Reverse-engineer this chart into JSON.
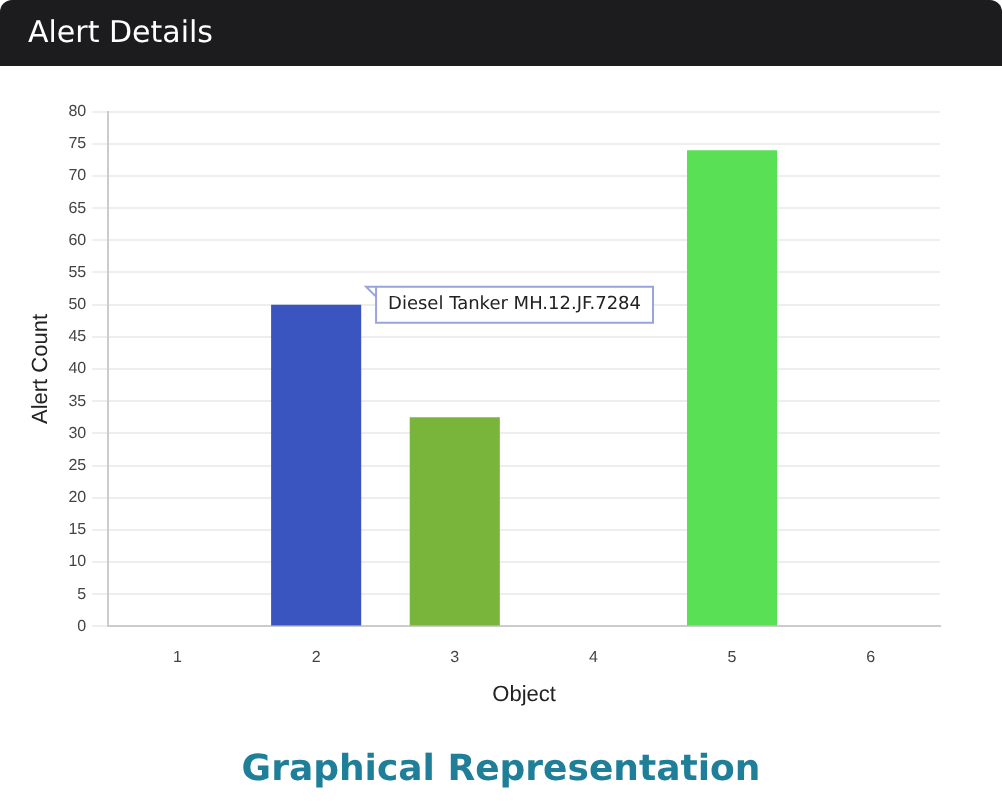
{
  "chart_data": {
    "type": "bar",
    "title": "Alert Details",
    "subtitle": "Graphical Representation",
    "xlabel": "Object",
    "ylabel": "Alert Count",
    "categories": [
      "1",
      "2",
      "3",
      "4",
      "5",
      "6"
    ],
    "values": [
      null,
      50,
      32.5,
      null,
      74,
      null
    ],
    "colors": [
      "#3a55c0",
      "#3a55c0",
      "#78b53a",
      "#78b53a",
      "#5ae055",
      "#5ae055"
    ],
    "ylim": [
      0,
      80
    ],
    "yticks": [
      0,
      5,
      10,
      15,
      20,
      25,
      30,
      35,
      40,
      45,
      50,
      55,
      60,
      65,
      70,
      75,
      80
    ],
    "grid": "y",
    "annotations": [
      "Diesel Tanker MH.12.JF.7284"
    ]
  }
}
